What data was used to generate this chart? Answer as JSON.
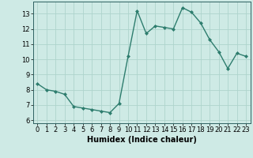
{
  "x": [
    0,
    1,
    2,
    3,
    4,
    5,
    6,
    7,
    8,
    9,
    10,
    11,
    12,
    13,
    14,
    15,
    16,
    17,
    18,
    19,
    20,
    21,
    22,
    23
  ],
  "y": [
    8.4,
    8.0,
    7.9,
    7.7,
    6.9,
    6.8,
    6.7,
    6.6,
    6.5,
    7.1,
    10.2,
    13.2,
    11.7,
    12.2,
    12.1,
    12.0,
    13.4,
    13.1,
    12.4,
    11.3,
    10.5,
    9.4,
    10.4,
    10.2
  ],
  "xlabel": "Humidex (Indice chaleur)",
  "xlim": [
    -0.5,
    23.5
  ],
  "ylim": [
    5.8,
    13.8
  ],
  "yticks": [
    6,
    7,
    8,
    9,
    10,
    11,
    12,
    13
  ],
  "xticks": [
    0,
    1,
    2,
    3,
    4,
    5,
    6,
    7,
    8,
    9,
    10,
    11,
    12,
    13,
    14,
    15,
    16,
    17,
    18,
    19,
    20,
    21,
    22,
    23
  ],
  "line_color": "#2e7d6e",
  "marker": "D",
  "marker_size": 2.0,
  "bg_color": "#ceeae5",
  "grid_color": "#aed4cc",
  "xlabel_fontsize": 7.0,
  "tick_fontsize": 6.0,
  "linewidth": 1.0
}
